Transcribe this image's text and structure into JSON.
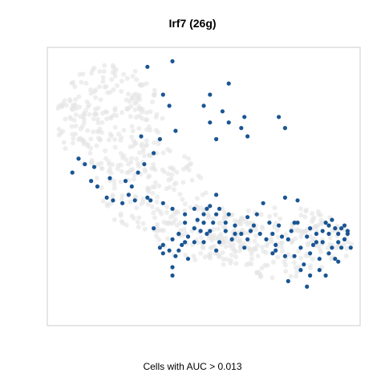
{
  "chart_data": {
    "type": "scatter",
    "title": "Irf7 (26g)",
    "xlabel": "Cells with AUC > 0.013",
    "ylabel": "",
    "grid": false,
    "colors": {
      "highlight": "#1a5593",
      "background_cells": "#e5e5e5",
      "frame": "#cccccc"
    },
    "xlim": [
      0,
      1
    ],
    "ylim": [
      0,
      1
    ],
    "series": [
      {
        "points": [
          [
            0.4,
            0.95
          ],
          [
            0.32,
            0.93
          ],
          [
            0.37,
            0.83
          ],
          [
            0.39,
            0.79
          ],
          [
            0.74,
            0.75
          ],
          [
            0.76,
            0.71
          ],
          [
            0.52,
            0.73
          ],
          [
            0.56,
            0.77
          ],
          [
            0.58,
            0.73
          ],
          [
            0.58,
            0.87
          ],
          [
            0.63,
            0.75
          ],
          [
            0.52,
            0.83
          ],
          [
            0.5,
            0.79
          ],
          [
            0.41,
            0.7
          ],
          [
            0.54,
            0.67
          ],
          [
            0.62,
            0.71
          ],
          [
            0.64,
            0.68
          ],
          [
            0.36,
            0.67
          ],
          [
            0.3,
            0.68
          ],
          [
            0.34,
            0.62
          ],
          [
            0.2,
            0.53
          ],
          [
            0.32,
            0.46
          ],
          [
            0.33,
            0.45
          ],
          [
            0.37,
            0.44
          ],
          [
            0.28,
            0.45
          ],
          [
            0.4,
            0.42
          ],
          [
            0.44,
            0.4
          ],
          [
            0.47,
            0.42
          ],
          [
            0.51,
            0.42
          ],
          [
            0.55,
            0.42
          ],
          [
            0.58,
            0.4
          ],
          [
            0.64,
            0.39
          ],
          [
            0.76,
            0.46
          ],
          [
            0.8,
            0.45
          ],
          [
            0.84,
            0.35
          ],
          [
            0.89,
            0.37
          ],
          [
            0.91,
            0.38
          ],
          [
            0.8,
            0.37
          ],
          [
            0.77,
            0.31
          ],
          [
            0.76,
            0.25
          ],
          [
            0.69,
            0.44
          ],
          [
            0.67,
            0.4
          ],
          [
            0.65,
            0.34
          ],
          [
            0.71,
            0.37
          ],
          [
            0.73,
            0.27
          ],
          [
            0.77,
            0.16
          ],
          [
            0.81,
            0.2
          ],
          [
            0.83,
            0.14
          ],
          [
            0.87,
            0.24
          ],
          [
            0.89,
            0.18
          ],
          [
            0.92,
            0.24
          ],
          [
            0.94,
            0.28
          ],
          [
            0.95,
            0.31
          ],
          [
            0.96,
            0.33
          ],
          [
            0.94,
            0.35
          ],
          [
            0.97,
            0.28
          ],
          [
            0.93,
            0.33
          ],
          [
            0.96,
            0.34
          ],
          [
            0.81,
            0.28
          ],
          [
            0.84,
            0.26
          ],
          [
            0.86,
            0.3
          ],
          [
            0.9,
            0.26
          ],
          [
            0.93,
            0.3
          ],
          [
            0.9,
            0.33
          ],
          [
            0.88,
            0.3
          ],
          [
            0.57,
            0.34
          ],
          [
            0.55,
            0.3
          ],
          [
            0.54,
            0.27
          ],
          [
            0.53,
            0.37
          ],
          [
            0.52,
            0.43
          ],
          [
            0.5,
            0.4
          ],
          [
            0.54,
            0.4
          ],
          [
            0.54,
            0.47
          ],
          [
            0.34,
            0.35
          ],
          [
            0.37,
            0.26
          ],
          [
            0.4,
            0.21
          ],
          [
            0.4,
            0.18
          ],
          [
            0.42,
            0.27
          ],
          [
            0.45,
            0.24
          ],
          [
            0.48,
            0.38
          ],
          [
            0.47,
            0.35
          ],
          [
            0.45,
            0.32
          ],
          [
            0.44,
            0.3
          ],
          [
            0.49,
            0.34
          ],
          [
            0.5,
            0.3
          ],
          [
            0.51,
            0.33
          ],
          [
            0.52,
            0.34
          ],
          [
            0.36,
            0.28
          ],
          [
            0.4,
            0.31
          ],
          [
            0.39,
            0.27
          ],
          [
            0.37,
            0.29
          ],
          [
            0.41,
            0.25
          ],
          [
            0.43,
            0.29
          ],
          [
            0.42,
            0.33
          ],
          [
            0.44,
            0.37
          ],
          [
            0.47,
            0.3
          ],
          [
            0.5,
            0.37
          ],
          [
            0.57,
            0.37
          ],
          [
            0.6,
            0.33
          ],
          [
            0.59,
            0.31
          ],
          [
            0.64,
            0.31
          ],
          [
            0.63,
            0.28
          ],
          [
            0.6,
            0.36
          ],
          [
            0.62,
            0.33
          ],
          [
            0.66,
            0.36
          ],
          [
            0.68,
            0.33
          ],
          [
            0.7,
            0.31
          ],
          [
            0.72,
            0.33
          ],
          [
            0.74,
            0.36
          ],
          [
            0.73,
            0.29
          ],
          [
            0.75,
            0.32
          ],
          [
            0.78,
            0.34
          ],
          [
            0.79,
            0.37
          ],
          [
            0.83,
            0.32
          ],
          [
            0.86,
            0.33
          ],
          [
            0.88,
            0.34
          ],
          [
            0.9,
            0.36
          ],
          [
            0.92,
            0.35
          ],
          [
            0.95,
            0.36
          ],
          [
            0.82,
            0.22
          ],
          [
            0.84,
            0.18
          ],
          [
            0.87,
            0.2
          ],
          [
            0.85,
            0.29
          ],
          [
            0.93,
            0.23
          ],
          [
            0.91,
            0.28
          ],
          [
            0.79,
            0.25
          ],
          [
            0.72,
            0.26
          ],
          [
            0.1,
            0.6
          ],
          [
            0.08,
            0.55
          ],
          [
            0.12,
            0.58
          ],
          [
            0.15,
            0.57
          ],
          [
            0.16,
            0.5
          ],
          [
            0.14,
            0.52
          ],
          [
            0.19,
            0.46
          ],
          [
            0.21,
            0.45
          ],
          [
            0.24,
            0.44
          ],
          [
            0.27,
            0.5
          ],
          [
            0.25,
            0.52
          ],
          [
            0.26,
            0.47
          ],
          [
            0.29,
            0.55
          ],
          [
            0.31,
            0.58
          ]
        ]
      }
    ]
  }
}
